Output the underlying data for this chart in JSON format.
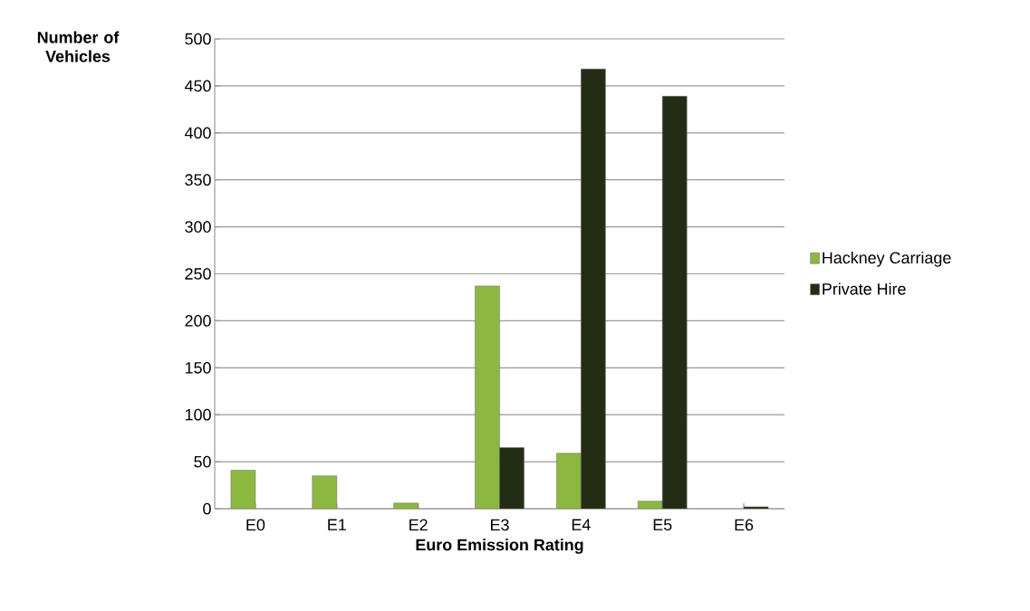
{
  "chart_data": {
    "type": "bar",
    "xlabel": "Euro Emission Rating",
    "ylabel": "Number of Vehicles",
    "categories": [
      "E0",
      "E1",
      "E2",
      "E3",
      "E4",
      "E5",
      "E6"
    ],
    "series": [
      {
        "name": "Hackney Carriage",
        "color": "#8db840",
        "values": [
          41,
          35,
          6,
          237,
          59,
          8,
          null
        ]
      },
      {
        "name": "Private Hire",
        "color": "#232c14",
        "values": [
          null,
          null,
          null,
          65,
          468,
          439,
          2
        ]
      }
    ],
    "ylim": [
      0,
      500
    ],
    "yticks": [
      0,
      50,
      100,
      150,
      200,
      250,
      300,
      350,
      400,
      450,
      500
    ],
    "grid": "y",
    "legend": "right"
  }
}
